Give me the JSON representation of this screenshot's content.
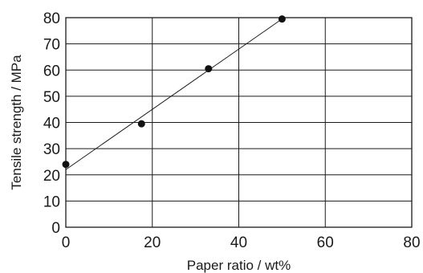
{
  "chart_data": {
    "type": "scatter",
    "title": "",
    "xlabel": "Paper ratio / wt%",
    "ylabel": "Tensile strength / MPa",
    "xlim": [
      0,
      80
    ],
    "ylim": [
      0,
      80
    ],
    "x_ticks": [
      0,
      20,
      40,
      60,
      80
    ],
    "y_ticks": [
      0,
      10,
      20,
      30,
      40,
      50,
      60,
      70,
      80
    ],
    "grid": true,
    "series": [
      {
        "points": [
          {
            "x": 0,
            "y": 24
          },
          {
            "x": 17.5,
            "y": 39.5
          },
          {
            "x": 33,
            "y": 60.5
          },
          {
            "x": 50,
            "y": 79.5
          }
        ]
      }
    ],
    "trend_line": {
      "x": [
        0,
        50
      ],
      "y": [
        22,
        79.5
      ]
    },
    "colors": {
      "ink": "#1a1a1a",
      "marker": "#111111",
      "background": "#ffffff"
    }
  }
}
